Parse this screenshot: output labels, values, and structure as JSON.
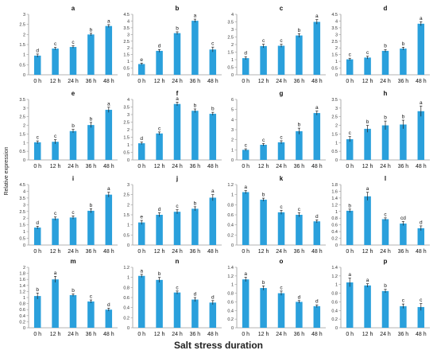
{
  "figure": {
    "ylabel": "Relative expression",
    "xlabel": "Salt stress duration",
    "bar_color": "#2aa0dc",
    "axis_color": "#9a9a9a"
  },
  "chart_data": [
    {
      "type": "bar",
      "title": "a",
      "categories": [
        "0 h",
        "12 h",
        "24 h",
        "36 h",
        "48 h"
      ],
      "ylim": [
        0,
        3
      ],
      "yticks": [
        "0",
        "0.5",
        "1",
        "1.5",
        "2",
        "2.5",
        "3"
      ],
      "values": [
        0.95,
        1.3,
        1.38,
        2.0,
        2.42
      ],
      "errors": [
        0.08,
        0.06,
        0.06,
        0.06,
        0.07
      ],
      "letters": [
        "d",
        "c",
        "c",
        "b",
        "a"
      ]
    },
    {
      "type": "bar",
      "title": "b",
      "categories": [
        "0 h",
        "12 h",
        "24 h",
        "36 h",
        "48 h"
      ],
      "ylim": [
        0,
        4.5
      ],
      "yticks": [
        "0",
        "0.5",
        "1",
        "1.5",
        "2",
        "2.5",
        "3",
        "3.5",
        "4",
        "4.5"
      ],
      "values": [
        0.8,
        1.78,
        3.1,
        4.02,
        1.88
      ],
      "errors": [
        0.07,
        0.1,
        0.1,
        0.12,
        0.18
      ],
      "letters": [
        "e",
        "d",
        "b",
        "a",
        "c"
      ]
    },
    {
      "type": "bar",
      "title": "c",
      "categories": [
        "0 h",
        "12 h",
        "24 h",
        "36 h",
        "48 h"
      ],
      "ylim": [
        0,
        4
      ],
      "yticks": [
        "0",
        "0.5",
        "1",
        "1.5",
        "2",
        "2.5",
        "3",
        "3.5",
        "4"
      ],
      "values": [
        1.1,
        1.9,
        1.92,
        2.6,
        3.5
      ],
      "errors": [
        0.1,
        0.12,
        0.1,
        0.12,
        0.15
      ],
      "letters": [
        "d",
        "c",
        "c",
        "b",
        "a"
      ]
    },
    {
      "type": "bar",
      "title": "d",
      "categories": [
        "0 h",
        "12 h",
        "24 h",
        "36 h",
        "48 h"
      ],
      "ylim": [
        0,
        4.5
      ],
      "yticks": [
        "0",
        "0.5",
        "1",
        "1.5",
        "2",
        "2.5",
        "3",
        "3.5",
        "4",
        "4.5"
      ],
      "values": [
        1.15,
        1.28,
        1.78,
        1.95,
        3.8
      ],
      "errors": [
        0.08,
        0.1,
        0.1,
        0.1,
        0.15
      ],
      "letters": [
        "c",
        "c",
        "b",
        "b",
        "a"
      ]
    },
    {
      "type": "bar",
      "title": "e",
      "categories": [
        "0 h",
        "12 h",
        "24 h",
        "36 h",
        "48 h"
      ],
      "ylim": [
        0,
        3.5
      ],
      "yticks": [
        "0",
        "0.5",
        "1",
        "1.5",
        "2",
        "2.5",
        "3",
        "3.5"
      ],
      "values": [
        1.02,
        1.05,
        1.67,
        2.02,
        2.9
      ],
      "errors": [
        0.08,
        0.12,
        0.1,
        0.15,
        0.15
      ],
      "letters": [
        "c",
        "c",
        "b",
        "b",
        "a"
      ]
    },
    {
      "type": "bar",
      "title": "f",
      "categories": [
        "0 h",
        "12 h",
        "24 h",
        "36 h",
        "48 h"
      ],
      "ylim": [
        0,
        4
      ],
      "yticks": [
        "0",
        "0.5",
        "1",
        "1.5",
        "2",
        "2.5",
        "3",
        "3.5",
        "4"
      ],
      "values": [
        1.1,
        1.75,
        3.7,
        3.25,
        3.05
      ],
      "errors": [
        0.08,
        0.1,
        0.12,
        0.12,
        0.1
      ],
      "letters": [
        "d",
        "c",
        "a",
        "b",
        "b"
      ]
    },
    {
      "type": "bar",
      "title": "g",
      "categories": [
        "0 h",
        "12 h",
        "24 h",
        "36 h",
        "48 h"
      ],
      "ylim": [
        0,
        6
      ],
      "yticks": [
        "0",
        "1",
        "2",
        "3",
        "4",
        "5",
        "6"
      ],
      "values": [
        1.0,
        1.5,
        1.75,
        2.85,
        4.65
      ],
      "errors": [
        0.1,
        0.12,
        0.15,
        0.3,
        0.2
      ],
      "letters": [
        "c",
        "c",
        "c",
        "b",
        "a"
      ]
    },
    {
      "type": "bar",
      "title": "h",
      "categories": [
        "0 h",
        "12 h",
        "24 h",
        "36 h",
        "48 h"
      ],
      "ylim": [
        0,
        3.5
      ],
      "yticks": [
        "0",
        "0.5",
        "1",
        "1.5",
        "2",
        "2.5",
        "3",
        "3.5"
      ],
      "values": [
        1.2,
        1.8,
        2.0,
        2.05,
        2.82
      ],
      "errors": [
        0.15,
        0.2,
        0.25,
        0.25,
        0.3
      ],
      "letters": [
        "c",
        "b",
        "b",
        "b",
        "a"
      ]
    },
    {
      "type": "bar",
      "title": "i",
      "categories": [
        "0 h",
        "12 h",
        "24 h",
        "36 h",
        "48 h"
      ],
      "ylim": [
        0,
        4.5
      ],
      "yticks": [
        "0",
        "0.5",
        "1",
        "1.5",
        "2",
        "2.5",
        "3",
        "3.5",
        "4",
        "4.5"
      ],
      "values": [
        1.3,
        1.97,
        2.05,
        2.55,
        3.75
      ],
      "errors": [
        0.1,
        0.12,
        0.12,
        0.15,
        0.18
      ],
      "letters": [
        "d",
        "c",
        "c",
        "b",
        "a"
      ]
    },
    {
      "type": "bar",
      "title": "j",
      "categories": [
        "0 h",
        "12 h",
        "24 h",
        "36 h",
        "48 h"
      ],
      "ylim": [
        0,
        3
      ],
      "yticks": [
        "0",
        "0.5",
        "1",
        "1.5",
        "2",
        "2.5",
        "3"
      ],
      "values": [
        1.12,
        1.5,
        1.65,
        1.8,
        2.35
      ],
      "errors": [
        0.1,
        0.1,
        0.1,
        0.1,
        0.15
      ],
      "letters": [
        "e",
        "d",
        "c",
        "b",
        "a"
      ]
    },
    {
      "type": "bar",
      "title": "k",
      "categories": [
        "0 h",
        "12 h",
        "24 h",
        "36 h",
        "48 h"
      ],
      "ylim": [
        0,
        1.2
      ],
      "yticks": [
        "0",
        "0.2",
        "0.4",
        "0.6",
        "0.8",
        "1",
        "1.2"
      ],
      "values": [
        1.05,
        0.9,
        0.65,
        0.6,
        0.47
      ],
      "errors": [
        0.03,
        0.03,
        0.04,
        0.04,
        0.03
      ],
      "letters": [
        "a",
        "b",
        "c",
        "c",
        "d"
      ]
    },
    {
      "type": "bar",
      "title": "l",
      "categories": [
        "0 h",
        "12 h",
        "24 h",
        "36 h",
        "48 h"
      ],
      "ylim": [
        0,
        1.8
      ],
      "yticks": [
        "0",
        "0.2",
        "0.4",
        "0.6",
        "0.8",
        "1",
        "1.2",
        "1.4",
        "1.6",
        "1.8"
      ],
      "values": [
        1.02,
        1.45,
        0.77,
        0.64,
        0.5
      ],
      "errors": [
        0.05,
        0.12,
        0.04,
        0.06,
        0.07
      ],
      "letters": [
        "b",
        "a",
        "c",
        "cd",
        "d"
      ]
    },
    {
      "type": "bar",
      "title": "m",
      "categories": [
        "0 h",
        "12 h",
        "24 h",
        "36 h",
        "48 h"
      ],
      "ylim": [
        0,
        2
      ],
      "yticks": [
        "0",
        "0.2",
        "0.4",
        "0.6",
        "0.8",
        "1",
        "1.2",
        "1.4",
        "1.6",
        "1.8",
        "2"
      ],
      "values": [
        1.05,
        1.6,
        1.08,
        0.87,
        0.6
      ],
      "errors": [
        0.1,
        0.1,
        0.04,
        0.05,
        0.05
      ],
      "letters": [
        "b",
        "a",
        "b",
        "c",
        "d"
      ]
    },
    {
      "type": "bar",
      "title": "n",
      "categories": [
        "0 h",
        "12 h",
        "24 h",
        "36 h",
        "48 h"
      ],
      "ylim": [
        0,
        1.2
      ],
      "yticks": [
        "0",
        "0.2",
        "0.4",
        "0.6",
        "0.8",
        "1",
        "1.2"
      ],
      "values": [
        1.03,
        0.95,
        0.7,
        0.56,
        0.5
      ],
      "errors": [
        0.03,
        0.05,
        0.03,
        0.04,
        0.04
      ],
      "letters": [
        "a",
        "b",
        "c",
        "d",
        "d"
      ]
    },
    {
      "type": "bar",
      "title": "o",
      "categories": [
        "0 h",
        "12 h",
        "24 h",
        "36 h",
        "48 h"
      ],
      "ylim": [
        0,
        1.4
      ],
      "yticks": [
        "0",
        "0.2",
        "0.4",
        "0.6",
        "0.8",
        "1",
        "1.2",
        "1.4"
      ],
      "values": [
        1.12,
        0.92,
        0.8,
        0.6,
        0.5
      ],
      "errors": [
        0.05,
        0.05,
        0.05,
        0.03,
        0.03
      ],
      "letters": [
        "a",
        "b",
        "c",
        "d",
        "d"
      ]
    },
    {
      "type": "bar",
      "title": "p",
      "categories": [
        "0 h",
        "12 h",
        "24 h",
        "36 h",
        "48 h"
      ],
      "ylim": [
        0,
        1.4
      ],
      "yticks": [
        "0",
        "0.2",
        "0.4",
        "0.6",
        "0.8",
        "1",
        "1.2",
        "1.4"
      ],
      "values": [
        1.05,
        0.98,
        0.85,
        0.5,
        0.48
      ],
      "errors": [
        0.1,
        0.04,
        0.04,
        0.05,
        0.08
      ],
      "letters": [
        "a",
        "a",
        "b",
        "c",
        "c"
      ]
    }
  ]
}
